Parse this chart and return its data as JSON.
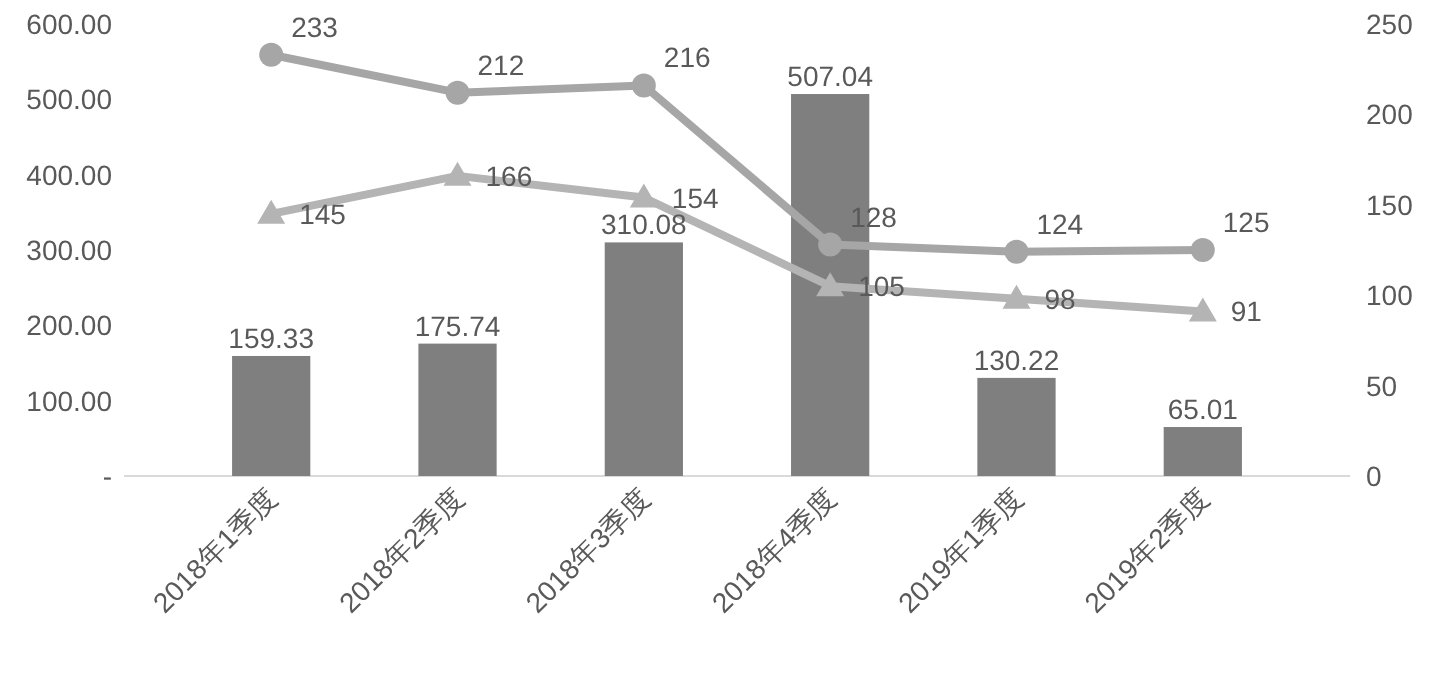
{
  "chart_data": {
    "type": "bar",
    "categories": [
      "2018年1季度",
      "2018年2季度",
      "2018年3季度",
      "2018年4季度",
      "2019年1季度",
      "2019年2季度"
    ],
    "series": [
      {
        "color": "#7f7f7f",
        "values": [
          159.33,
          175.74,
          310.08,
          507.04,
          130.22,
          65.01
        ]
      },
      {
        "type": "line",
        "axis": "y2",
        "marker": "circle",
        "color": "#a6a6a6",
        "values": [
          233,
          212,
          216,
          128,
          124,
          125
        ]
      },
      {
        "type": "line",
        "axis": "y2",
        "marker": "triangle",
        "color": "#b4b4b4",
        "values": [
          145,
          166,
          154,
          105,
          98,
          91
        ]
      }
    ],
    "ylim": [
      0,
      600
    ],
    "yticks": [
      {
        "value": 0,
        "label": "-"
      },
      {
        "value": 100,
        "label": "100.00"
      },
      {
        "value": 200,
        "label": "200.00"
      },
      {
        "value": 300,
        "label": "300.00"
      },
      {
        "value": 400,
        "label": "400.00"
      },
      {
        "value": 500,
        "label": "500.00"
      },
      {
        "value": 600,
        "label": "600.00"
      }
    ],
    "y2lim": [
      0,
      250
    ],
    "y2ticks": [
      0,
      50,
      100,
      150,
      200,
      250
    ],
    "data_labels": true,
    "grid": false,
    "line_style": "solid"
  }
}
